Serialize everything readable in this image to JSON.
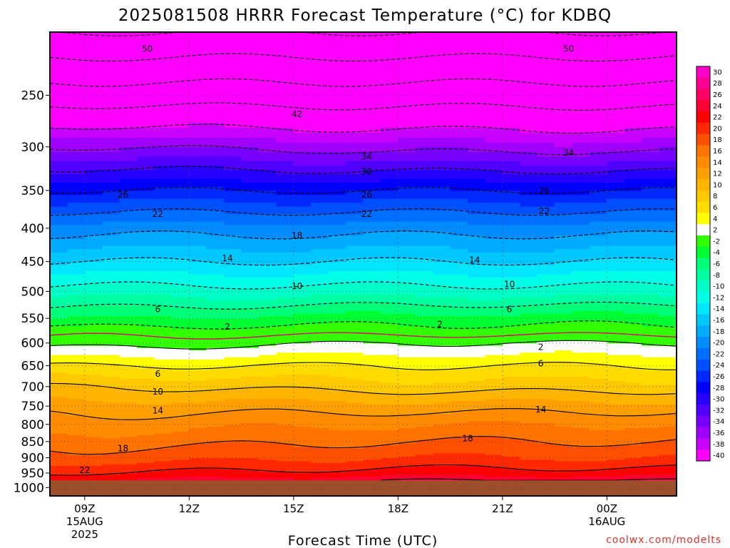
{
  "chart_data": {
    "type": "heatmap",
    "title": "2025081508 HRRR Forecast Temperature (°C) for KDBQ",
    "xlabel": "Forecast Time (UTC)",
    "ylabel": "",
    "credit": "coolwx.com/modelts",
    "x_ticks": [
      {
        "hour": 9,
        "label": "09Z",
        "sub": [
          "15AUG",
          "2025"
        ]
      },
      {
        "hour": 12,
        "label": "12Z",
        "sub": []
      },
      {
        "hour": 15,
        "label": "15Z",
        "sub": []
      },
      {
        "hour": 18,
        "label": "18Z",
        "sub": []
      },
      {
        "hour": 21,
        "label": "21Z",
        "sub": []
      },
      {
        "hour": 24,
        "label": "00Z",
        "sub": [
          "16AUG"
        ]
      }
    ],
    "xlim": [
      8,
      26
    ],
    "y_ticks": [
      250,
      300,
      350,
      400,
      450,
      500,
      550,
      600,
      650,
      700,
      750,
      800,
      850,
      900,
      950,
      1000
    ],
    "y_scale": "log-pressure",
    "ylim": [
      1030,
      200
    ],
    "surface_pressure_hPa": 975,
    "colorbar": {
      "levels": [
        30,
        28,
        26,
        24,
        22,
        20,
        18,
        16,
        14,
        12,
        10,
        8,
        6,
        4,
        2,
        -2,
        -4,
        -6,
        -8,
        -10,
        -12,
        -14,
        -16,
        -18,
        -20,
        -22,
        -24,
        -26,
        -28,
        -30,
        -32,
        -34,
        -36,
        -38,
        -40
      ],
      "colors": [
        "#ff00c8",
        "#ff0096",
        "#ff0064",
        "#ff0032",
        "#ff0000",
        "#ff2800",
        "#ff5000",
        "#ff7300",
        "#ff8c00",
        "#ffa000",
        "#ffb400",
        "#ffc800",
        "#ffdc00",
        "#ffff00",
        "#ffffff",
        "#32ff00",
        "#00ff32",
        "#00ff78",
        "#00ffa0",
        "#00ffc8",
        "#00ffe6",
        "#00e6ff",
        "#00c8ff",
        "#00aaff",
        "#008cff",
        "#006eff",
        "#0050ff",
        "#0028ff",
        "#0000ff",
        "#2800ff",
        "#5000ff",
        "#7800ff",
        "#a000ff",
        "#c800ff",
        "#ff00ff"
      ]
    },
    "temperature_profile": {
      "pressure_hPa": [
        975,
        950,
        900,
        850,
        800,
        750,
        700,
        650,
        600,
        575,
        550,
        500,
        450,
        400,
        350,
        300,
        250,
        200
      ],
      "temp_C_at_09Z": [
        24,
        22,
        19,
        17,
        15,
        13,
        10,
        6,
        1,
        -1,
        -4,
        -9,
        -14,
        -19,
        -26,
        -34,
        -44,
        -54
      ],
      "temp_C_at_18Z": [
        26,
        23,
        20,
        18,
        16,
        13,
        9,
        6,
        2,
        -1,
        -3,
        -9,
        -14,
        -19,
        -26,
        -35,
        -44,
        -54
      ]
    },
    "contour_labels": [
      {
        "text": "50",
        "hour": 10.8,
        "p": 212
      },
      {
        "text": "50",
        "hour": 22.9,
        "p": 212
      },
      {
        "text": "42",
        "hour": 15.1,
        "p": 267
      },
      {
        "text": "34",
        "hour": 17.1,
        "p": 310
      },
      {
        "text": "34",
        "hour": 22.9,
        "p": 306
      },
      {
        "text": "30",
        "hour": 17.1,
        "p": 327
      },
      {
        "text": "26",
        "hour": 10.1,
        "p": 355
      },
      {
        "text": "26",
        "hour": 17.1,
        "p": 355
      },
      {
        "text": "26",
        "hour": 22.2,
        "p": 350
      },
      {
        "text": "22",
        "hour": 11.1,
        "p": 380
      },
      {
        "text": "22",
        "hour": 17.1,
        "p": 380
      },
      {
        "text": "22",
        "hour": 22.2,
        "p": 376
      },
      {
        "text": "18",
        "hour": 15.1,
        "p": 410
      },
      {
        "text": "14",
        "hour": 13.1,
        "p": 444
      },
      {
        "text": "14",
        "hour": 20.2,
        "p": 447
      },
      {
        "text": "10",
        "hour": 15.1,
        "p": 490
      },
      {
        "text": "10",
        "hour": 21.2,
        "p": 487
      },
      {
        "text": "6",
        "hour": 11.1,
        "p": 532
      },
      {
        "text": "6",
        "hour": 21.2,
        "p": 532
      },
      {
        "text": "2",
        "hour": 13.1,
        "p": 566
      },
      {
        "text": "2",
        "hour": 19.2,
        "p": 561
      },
      {
        "text": "2",
        "hour": 22.1,
        "p": 608
      },
      {
        "text": "6",
        "hour": 22.1,
        "p": 644
      },
      {
        "text": "6",
        "hour": 11.1,
        "p": 668
      },
      {
        "text": "10",
        "hour": 11.1,
        "p": 712
      },
      {
        "text": "14",
        "hour": 11.1,
        "p": 761
      },
      {
        "text": "14",
        "hour": 22.1,
        "p": 758
      },
      {
        "text": "18",
        "hour": 10.1,
        "p": 870
      },
      {
        "text": "18",
        "hour": 20.0,
        "p": 840
      },
      {
        "text": "22",
        "hour": 9.0,
        "p": 940
      }
    ]
  }
}
